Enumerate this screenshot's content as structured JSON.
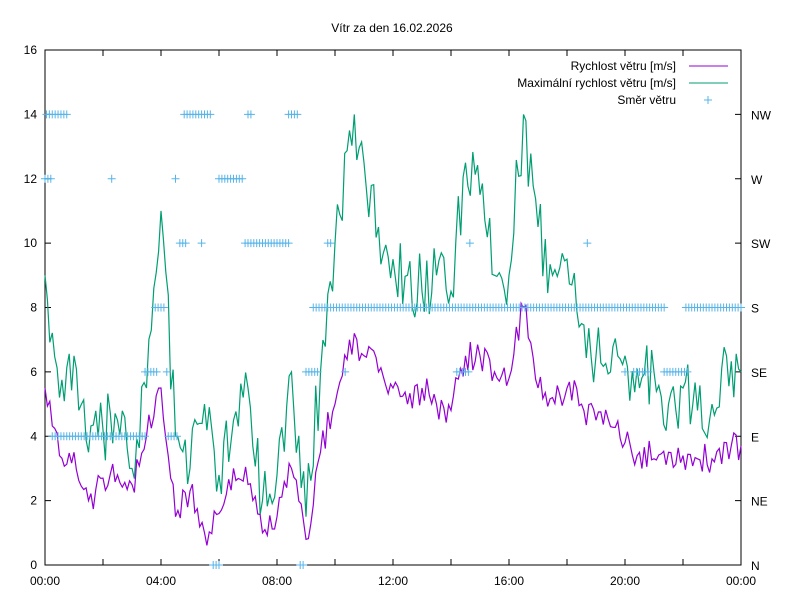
{
  "chart_data": {
    "type": "line",
    "title": "Vítr za den 16.02.2026",
    "xlabel": "",
    "ylabel": "",
    "xlim_hours": [
      0,
      24
    ],
    "ylim": [
      0,
      16
    ],
    "x_ticks": [
      "00:00",
      "04:00",
      "08:00",
      "12:00",
      "16:00",
      "20:00",
      "00:00"
    ],
    "x_tick_hours": [
      0,
      4,
      8,
      12,
      16,
      20,
      24
    ],
    "y_ticks": [
      "0",
      "2",
      "4",
      "6",
      "8",
      "10",
      "12",
      "14",
      "16"
    ],
    "y2_ticks": [
      "N",
      "NE",
      "E",
      "SE",
      "S",
      "SW",
      "W",
      "NW"
    ],
    "legend_position": "top-right",
    "x_hours": [
      0,
      0.5,
      1,
      1.5,
      2,
      2.5,
      3,
      3.5,
      4,
      4.5,
      5,
      5.5,
      6,
      6.5,
      7,
      7.5,
      8,
      8.5,
      9,
      9.5,
      10,
      10.5,
      11,
      11.5,
      12,
      12.5,
      13,
      13.5,
      14,
      14.5,
      15,
      15.5,
      16,
      16.5,
      17,
      17.5,
      18,
      18.5,
      19,
      19.5,
      20,
      20.5,
      21,
      21.5,
      22,
      22.5,
      23,
      23.5,
      24
    ],
    "series": [
      {
        "name": "Rychlost větru [m/s]",
        "color": "#9400d3",
        "values": [
          5.5,
          3.4,
          3.5,
          2.0,
          2.7,
          2.8,
          2.5,
          4.0,
          5.5,
          1.5,
          2.3,
          1.0,
          1.6,
          3.0,
          2.5,
          1.0,
          1.5,
          3.0,
          0.8,
          3.5,
          5.0,
          7.0,
          6.5,
          6.0,
          5.5,
          5.0,
          5.5,
          5.0,
          4.8,
          6.5,
          6.5,
          6.0,
          5.8,
          8.0,
          5.5,
          5.2,
          5.5,
          5.0,
          4.5,
          4.3,
          3.8,
          3.5,
          3.3,
          3.5,
          3.4,
          3.3,
          3.3,
          3.8,
          3.7
        ]
      },
      {
        "name": "Maximální rychlost větru [m/s]",
        "color": "#009e73",
        "values": [
          9.0,
          5.2,
          6.5,
          3.5,
          4.2,
          4.5,
          3.0,
          5.5,
          11.0,
          4.0,
          3.0,
          5.0,
          2.8,
          4.5,
          5.5,
          2.0,
          2.8,
          6.0,
          1.5,
          6.0,
          10.0,
          13.5,
          12.5,
          10.5,
          9.5,
          9.0,
          8.5,
          9.0,
          8.5,
          12.5,
          11.5,
          9.0,
          9.0,
          14.0,
          10.5,
          9.0,
          9.5,
          7.5,
          6.5,
          6.0,
          6.5,
          5.5,
          6.0,
          5.0,
          5.5,
          4.8,
          5.0,
          6.5,
          6.0
        ]
      },
      {
        "name": "Směr větru",
        "color": "#56b4e9",
        "marker": "+",
        "direction_segments": [
          {
            "dir": "NW",
            "from": 0.05,
            "to": 0.8
          },
          {
            "dir": "NW",
            "from": 4.8,
            "to": 5.75
          },
          {
            "dir": "NW",
            "from": 7.0,
            "to": 7.1
          },
          {
            "dir": "NW",
            "from": 8.4,
            "to": 8.7
          },
          {
            "dir": "W",
            "from": 0.0,
            "to": 0.2
          },
          {
            "dir": "W",
            "from": 2.3,
            "to": 2.3
          },
          {
            "dir": "W",
            "from": 4.5,
            "to": 4.5
          },
          {
            "dir": "W",
            "from": 6.0,
            "to": 6.8
          },
          {
            "dir": "SW",
            "from": 4.65,
            "to": 4.9
          },
          {
            "dir": "SW",
            "from": 5.4,
            "to": 5.4
          },
          {
            "dir": "SW",
            "from": 6.9,
            "to": 8.4
          },
          {
            "dir": "SW",
            "from": 9.75,
            "to": 9.85
          },
          {
            "dir": "SW",
            "from": 14.65,
            "to": 14.65
          },
          {
            "dir": "SW",
            "from": 18.7,
            "to": 18.7
          },
          {
            "dir": "S",
            "from": 3.8,
            "to": 4.15
          },
          {
            "dir": "S",
            "from": 9.25,
            "to": 21.4
          },
          {
            "dir": "S",
            "from": 22.1,
            "to": 24.0
          },
          {
            "dir": "SE",
            "from": 3.45,
            "to": 3.85
          },
          {
            "dir": "SE",
            "from": 4.2,
            "to": 4.2
          },
          {
            "dir": "SE",
            "from": 9.0,
            "to": 9.4
          },
          {
            "dir": "SE",
            "from": 10.35,
            "to": 10.35
          },
          {
            "dir": "SE",
            "from": 14.2,
            "to": 14.6
          },
          {
            "dir": "SE",
            "from": 20.0,
            "to": 20.0
          },
          {
            "dir": "SE",
            "from": 20.3,
            "to": 20.8
          },
          {
            "dir": "SE",
            "from": 21.35,
            "to": 22.2
          },
          {
            "dir": "E",
            "from": 0.25,
            "to": 3.45
          },
          {
            "dir": "E",
            "from": 4.25,
            "to": 4.6
          },
          {
            "dir": "N",
            "from": 5.8,
            "to": 6.0
          },
          {
            "dir": "N",
            "from": 8.8,
            "to": 8.95
          }
        ]
      }
    ]
  }
}
